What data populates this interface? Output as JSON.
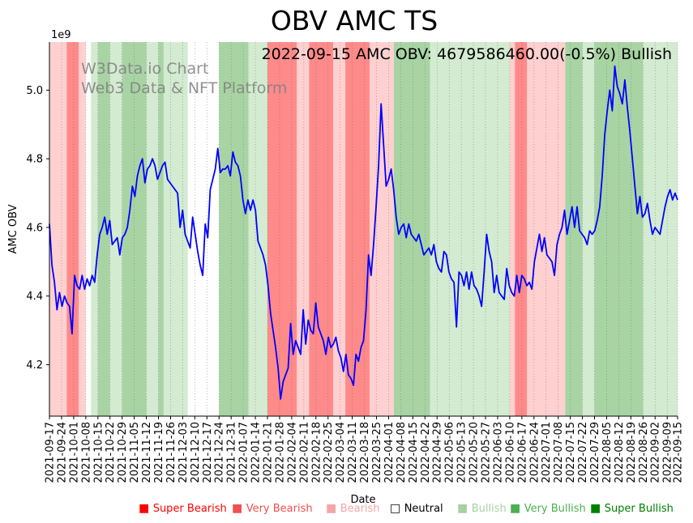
{
  "chart_data": {
    "type": "line",
    "title": "OBV AMC TS",
    "annotation": "2022-09-15 AMC OBV: 4679586460.00(-0.5%) Bullish",
    "watermark": [
      "W3Data.io Chart",
      "Web3 Data & NFT Platform"
    ],
    "xlabel": "Date",
    "ylabel": "AMC OBV",
    "y_scale_label": "1e9",
    "ylim": [
      4.05,
      5.14
    ],
    "yticks": [
      4.2,
      4.4,
      4.6,
      4.8,
      5.0
    ],
    "x_start": "2021-09-17",
    "x_end": "2022-09-15",
    "x_tick_labels": [
      "2021-09-17",
      "2021-09-24",
      "2021-10-01",
      "2021-10-08",
      "2021-10-15",
      "2021-10-22",
      "2021-10-29",
      "2021-11-05",
      "2021-11-12",
      "2021-11-19",
      "2021-11-26",
      "2021-12-03",
      "2021-12-10",
      "2021-12-17",
      "2021-12-24",
      "2021-12-31",
      "2022-01-07",
      "2022-01-14",
      "2022-01-21",
      "2022-01-28",
      "2022-02-04",
      "2022-02-11",
      "2022-02-18",
      "2022-02-25",
      "2022-03-04",
      "2022-03-11",
      "2022-03-18",
      "2022-03-25",
      "2022-04-01",
      "2022-04-08",
      "2022-04-15",
      "2022-04-22",
      "2022-04-29",
      "2022-05-06",
      "2022-05-13",
      "2022-05-20",
      "2022-05-27",
      "2022-06-03",
      "2022-06-10",
      "2022-06-17",
      "2022-06-24",
      "2022-07-01",
      "2022-07-08",
      "2022-07-15",
      "2022-07-22",
      "2022-07-29",
      "2022-08-05",
      "2022-08-12",
      "2022-08-19",
      "2022-08-26",
      "2022-09-02",
      "2022-09-09",
      "2022-09-15"
    ],
    "series": [
      {
        "name": "AMC OBV",
        "color": "#0000ff",
        "values": [
          4.61,
          4.49,
          4.44,
          4.36,
          4.41,
          4.37,
          4.4,
          4.38,
          4.37,
          4.29,
          4.46,
          4.43,
          4.42,
          4.46,
          4.42,
          4.45,
          4.43,
          4.46,
          4.44,
          4.52,
          4.58,
          4.6,
          4.63,
          4.58,
          4.62,
          4.55,
          4.56,
          4.57,
          4.52,
          4.57,
          4.58,
          4.6,
          4.65,
          4.72,
          4.69,
          4.75,
          4.78,
          4.8,
          4.73,
          4.77,
          4.78,
          4.8,
          4.78,
          4.74,
          4.76,
          4.78,
          4.79,
          4.74,
          4.73,
          4.72,
          4.71,
          4.7,
          4.6,
          4.65,
          4.58,
          4.56,
          4.54,
          4.63,
          4.58,
          4.53,
          4.49,
          4.46,
          4.61,
          4.57,
          4.71,
          4.74,
          4.77,
          4.83,
          4.76,
          4.77,
          4.77,
          4.78,
          4.75,
          4.82,
          4.79,
          4.78,
          4.75,
          4.68,
          4.64,
          4.68,
          4.65,
          4.68,
          4.65,
          4.56,
          4.54,
          4.52,
          4.49,
          4.43,
          4.35,
          4.3,
          4.25,
          4.19,
          4.1,
          4.15,
          4.17,
          4.19,
          4.32,
          4.23,
          4.27,
          4.25,
          4.23,
          4.36,
          4.26,
          4.33,
          4.3,
          4.29,
          4.38,
          4.31,
          4.29,
          4.27,
          4.23,
          4.28,
          4.25,
          4.26,
          4.28,
          4.24,
          4.22,
          4.18,
          4.23,
          4.17,
          4.16,
          4.14,
          4.23,
          4.21,
          4.25,
          4.27,
          4.36,
          4.52,
          4.46,
          4.55,
          4.66,
          4.78,
          4.96,
          4.84,
          4.72,
          4.74,
          4.77,
          4.71,
          4.63,
          4.58,
          4.6,
          4.61,
          4.57,
          4.61,
          4.58,
          4.57,
          4.56,
          4.58,
          4.55,
          4.52,
          4.53,
          4.54,
          4.52,
          4.55,
          4.5,
          4.48,
          4.47,
          4.53,
          4.52,
          4.47,
          4.45,
          4.44,
          4.31,
          4.47,
          4.46,
          4.43,
          4.47,
          4.42,
          4.47,
          4.43,
          4.42,
          4.4,
          4.37,
          4.47,
          4.58,
          4.53,
          4.5,
          4.41,
          4.46,
          4.41,
          4.4,
          4.39,
          4.48,
          4.43,
          4.41,
          4.4,
          4.46,
          4.41,
          4.46,
          4.45,
          4.43,
          4.44,
          4.42,
          4.5,
          4.54,
          4.58,
          4.53,
          4.57,
          4.52,
          4.51,
          4.5,
          4.46,
          4.55,
          4.58,
          4.6,
          4.65,
          4.58,
          4.62,
          4.66,
          4.6,
          4.66,
          4.59,
          4.58,
          4.57,
          4.55,
          4.59,
          4.58,
          4.59,
          4.62,
          4.66,
          4.75,
          4.87,
          4.94,
          5.0,
          4.94,
          5.07,
          5.01,
          4.99,
          4.96,
          5.03,
          4.95,
          4.88,
          4.8,
          4.72,
          4.64,
          4.69,
          4.63,
          4.64,
          4.67,
          4.62,
          4.58,
          4.6,
          4.59,
          4.58,
          4.62,
          4.66,
          4.69,
          4.71,
          4.68,
          4.7,
          4.68
        ]
      }
    ],
    "regime_bands": [
      {
        "start": "2021-09-17",
        "end": "2021-09-27",
        "state": "Bearish"
      },
      {
        "start": "2021-09-27",
        "end": "2021-10-04",
        "state": "Very Bearish"
      },
      {
        "start": "2021-10-04",
        "end": "2021-10-08",
        "state": "Bearish"
      },
      {
        "start": "2021-10-08",
        "end": "2021-10-11",
        "state": "Neutral"
      },
      {
        "start": "2021-10-11",
        "end": "2021-10-15",
        "state": "Bullish"
      },
      {
        "start": "2021-10-15",
        "end": "2021-10-22",
        "state": "Very Bullish"
      },
      {
        "start": "2021-10-22",
        "end": "2021-10-29",
        "state": "Bullish"
      },
      {
        "start": "2021-10-29",
        "end": "2021-11-12",
        "state": "Very Bullish"
      },
      {
        "start": "2021-11-12",
        "end": "2021-11-19",
        "state": "Bullish"
      },
      {
        "start": "2021-11-19",
        "end": "2021-11-22",
        "state": "Very Bullish"
      },
      {
        "start": "2021-11-22",
        "end": "2021-12-06",
        "state": "Bullish"
      },
      {
        "start": "2021-12-06",
        "end": "2021-12-24",
        "state": "Neutral"
      },
      {
        "start": "2021-12-24",
        "end": "2022-01-10",
        "state": "Very Bullish"
      },
      {
        "start": "2022-01-10",
        "end": "2022-01-21",
        "state": "Bullish"
      },
      {
        "start": "2022-01-21",
        "end": "2022-02-07",
        "state": "Very Bearish"
      },
      {
        "start": "2022-02-07",
        "end": "2022-02-14",
        "state": "Bearish"
      },
      {
        "start": "2022-02-14",
        "end": "2022-02-28",
        "state": "Very Bearish"
      },
      {
        "start": "2022-02-28",
        "end": "2022-03-07",
        "state": "Bearish"
      },
      {
        "start": "2022-03-07",
        "end": "2022-03-21",
        "state": "Very Bearish"
      },
      {
        "start": "2022-03-21",
        "end": "2022-04-04",
        "state": "Bearish"
      },
      {
        "start": "2022-04-04",
        "end": "2022-04-25",
        "state": "Very Bullish"
      },
      {
        "start": "2022-04-25",
        "end": "2022-06-10",
        "state": "Bullish"
      },
      {
        "start": "2022-06-10",
        "end": "2022-06-13",
        "state": "Bearish"
      },
      {
        "start": "2022-06-13",
        "end": "2022-06-20",
        "state": "Very Bearish"
      },
      {
        "start": "2022-06-20",
        "end": "2022-07-12",
        "state": "Bearish"
      },
      {
        "start": "2022-07-12",
        "end": "2022-07-22",
        "state": "Very Bullish"
      },
      {
        "start": "2022-07-22",
        "end": "2022-07-29",
        "state": "Bullish"
      },
      {
        "start": "2022-07-29",
        "end": "2022-08-26",
        "state": "Very Bullish"
      },
      {
        "start": "2022-08-26",
        "end": "2022-09-15",
        "state": "Bullish"
      }
    ],
    "legend": [
      {
        "label": "Super Bearish",
        "swatch": "■",
        "color": "#ff0000"
      },
      {
        "label": "Very Bearish",
        "swatch": "■",
        "color": "#f05050"
      },
      {
        "label": "Bearish",
        "swatch": "■",
        "color": "#f4a6a6"
      },
      {
        "label": "Neutral",
        "swatch": "□",
        "color": "#000000"
      },
      {
        "label": "Bullish",
        "swatch": "■",
        "color": "#a6d2a0"
      },
      {
        "label": "Very Bullish",
        "swatch": "■",
        "color": "#4caf50"
      },
      {
        "label": "Super Bullish",
        "swatch": "■",
        "color": "#008000"
      }
    ],
    "band_colors": {
      "Bearish": "#ffd0d0",
      "Very Bearish": "#ff8a8a",
      "Neutral": "#ffffff",
      "Bullish": "#d3ebd0",
      "Very Bullish": "#a8d4a4",
      "Super Bullish": "#7dbf78"
    }
  }
}
